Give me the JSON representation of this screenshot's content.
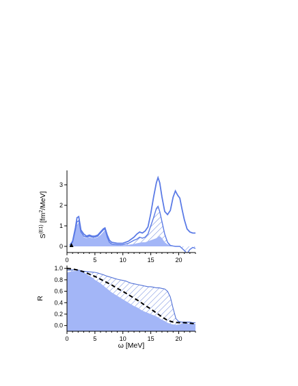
{
  "colors": {
    "line": "#5a7ae6",
    "fill": "#a3b6f7",
    "hatch": "#4f6fd6",
    "dash": "#000000"
  },
  "chart_data": [
    {
      "type": "area",
      "ylabel": "S(E1) [fm2/MeV]",
      "ylabel_main": "S",
      "ylabel_sup": "(E1)",
      "ylabel_unit_a": " [fm",
      "ylabel_unit_sup": "2",
      "ylabel_unit_b": "/MeV]",
      "xlim": [
        0,
        23
      ],
      "ylim": [
        -0.3,
        3.7
      ],
      "xticks": [
        "0",
        "5",
        "10",
        "15",
        "20"
      ],
      "xtick_values": [
        0,
        5,
        10,
        15,
        20
      ],
      "yticks": [
        "0",
        "1",
        "2",
        "3"
      ],
      "ytick_values": [
        0,
        1,
        2,
        3
      ],
      "marker": {
        "shape": "triangle",
        "x": 0.8,
        "y": 0.0
      },
      "series": [
        {
          "role": "total-outline",
          "x": [
            0.5,
            1.0,
            1.5,
            1.8,
            2.1,
            2.5,
            3.0,
            3.5,
            4.0,
            4.5,
            5.0,
            5.5,
            6.0,
            6.5,
            6.8,
            7.2,
            7.6,
            8.0,
            9.0,
            10.0,
            11.0,
            12.0,
            12.5,
            13.0,
            13.5,
            14.0,
            14.5,
            15.0,
            15.5,
            16.0,
            16.3,
            16.6,
            17.0,
            17.5,
            18.0,
            18.5,
            19.0,
            19.4,
            19.8,
            20.2,
            20.6,
            21.0,
            21.5,
            22.0,
            22.5,
            23.0
          ],
          "values": [
            0.05,
            0.25,
            0.9,
            1.4,
            1.45,
            0.8,
            0.6,
            0.5,
            0.55,
            0.5,
            0.5,
            0.55,
            0.7,
            0.85,
            0.9,
            0.55,
            0.3,
            0.2,
            0.15,
            0.15,
            0.25,
            0.45,
            0.6,
            0.7,
            0.65,
            0.75,
            0.95,
            1.6,
            2.4,
            3.1,
            3.35,
            3.1,
            2.4,
            1.7,
            1.55,
            1.75,
            2.4,
            2.7,
            2.5,
            2.35,
            1.8,
            1.3,
            0.85,
            0.7,
            0.65,
            0.65
          ]
        },
        {
          "role": "middle-outline",
          "x": [
            0.5,
            1.0,
            1.5,
            1.8,
            2.1,
            2.5,
            3.0,
            3.5,
            4.0,
            4.5,
            5.0,
            5.5,
            6.0,
            6.5,
            6.8,
            7.2,
            7.6,
            8.0,
            9.0,
            10.0,
            11.0,
            12.0,
            12.5,
            13.0,
            13.5,
            14.0,
            14.5,
            15.0,
            15.5,
            16.0,
            16.3,
            16.6,
            17.0,
            17.5,
            18.0,
            18.5,
            19.0,
            19.4,
            19.8,
            20.2,
            20.6,
            21.0,
            21.5,
            22.0,
            22.5,
            23.0
          ],
          "values": [
            0.05,
            0.2,
            0.8,
            1.2,
            1.25,
            0.7,
            0.5,
            0.45,
            0.5,
            0.45,
            0.45,
            0.5,
            0.65,
            0.8,
            0.85,
            0.45,
            0.2,
            0.12,
            0.08,
            0.08,
            0.15,
            0.3,
            0.35,
            0.45,
            0.4,
            0.45,
            0.6,
            1.0,
            1.4,
            1.85,
            1.95,
            1.7,
            1.2,
            0.6,
            0.2,
            0.05,
            0.02,
            0.0,
            0.0,
            0.0,
            -0.1,
            -0.2,
            -0.35,
            -0.15,
            -0.05,
            -0.1
          ]
        },
        {
          "role": "filled-area",
          "x": [
            0.5,
            1.0,
            1.5,
            1.8,
            2.1,
            2.5,
            3.0,
            3.5,
            4.0,
            4.5,
            5.0,
            5.5,
            6.0,
            6.5,
            6.8,
            7.2,
            7.6,
            8.0,
            9.0,
            10.0,
            11.0,
            12.0,
            12.5,
            13.0,
            13.5,
            14.0,
            14.5,
            15.0,
            15.5,
            16.0,
            16.3,
            16.6,
            17.0,
            17.5,
            18.0,
            18.5,
            19.0,
            19.4,
            19.8,
            20.2,
            20.6,
            21.0,
            21.5,
            22.0,
            22.5,
            23.0
          ],
          "values": [
            0.05,
            0.2,
            0.75,
            1.05,
            1.1,
            0.65,
            0.45,
            0.4,
            0.45,
            0.4,
            0.4,
            0.45,
            0.55,
            0.7,
            0.8,
            0.4,
            0.18,
            0.1,
            0.06,
            0.05,
            0.08,
            0.12,
            0.15,
            0.18,
            0.2,
            0.2,
            0.25,
            0.3,
            0.35,
            0.4,
            0.45,
            0.5,
            0.4,
            0.2,
            0.1,
            0.05,
            0.02,
            0.0,
            0.0,
            0.0,
            0.0,
            0.0,
            0.0,
            0.0,
            0.0,
            0.0
          ]
        }
      ]
    },
    {
      "type": "area",
      "ylabel": "R",
      "xlabel": "ω [MeV]",
      "xlim": [
        0,
        23
      ],
      "ylim": [
        -0.1,
        1.05
      ],
      "xticks": [
        "0",
        "5",
        "10",
        "15",
        "20"
      ],
      "xtick_values": [
        0,
        5,
        10,
        15,
        20
      ],
      "yticks": [
        "0.0",
        "0.2",
        "0.4",
        "0.6",
        "0.8",
        "1.0"
      ],
      "ytick_values": [
        0.0,
        0.2,
        0.4,
        0.6,
        0.8,
        1.0
      ],
      "series": [
        {
          "role": "upper-outline",
          "x": [
            0,
            0.5,
            1.0,
            1.5,
            2.0,
            2.5,
            3.0,
            3.5,
            4.0,
            4.5,
            5.0,
            5.5,
            6.0,
            6.5,
            7.0,
            7.5,
            8.0,
            8.5,
            9.0,
            9.5,
            10.0,
            10.5,
            11.0,
            11.5,
            12.0,
            12.5,
            13.0,
            13.5,
            14.0,
            14.5,
            15.0,
            15.5,
            16.0,
            16.5,
            17.0,
            17.5,
            18.0,
            18.5,
            19.0,
            19.5,
            20.0,
            20.5,
            21.0,
            21.5,
            22.0,
            22.5,
            23.0
          ],
          "values": [
            0.97,
            0.97,
            0.975,
            0.975,
            0.97,
            0.96,
            0.95,
            0.945,
            0.94,
            0.935,
            0.93,
            0.92,
            0.905,
            0.89,
            0.87,
            0.855,
            0.84,
            0.825,
            0.81,
            0.8,
            0.79,
            0.78,
            0.76,
            0.74,
            0.73,
            0.72,
            0.71,
            0.7,
            0.69,
            0.68,
            0.68,
            0.67,
            0.66,
            0.66,
            0.65,
            0.64,
            0.6,
            0.5,
            0.3,
            0.12,
            0.07,
            0.06,
            0.06,
            0.06,
            0.06,
            0.05,
            0.05
          ]
        },
        {
          "role": "dashed-curve",
          "x": [
            0,
            1,
            2,
            3,
            4,
            5,
            6,
            7,
            8,
            9,
            10,
            11,
            12,
            13,
            14,
            15,
            16,
            17,
            18,
            19,
            20,
            21,
            22,
            23
          ],
          "values": [
            1.0,
            0.99,
            0.97,
            0.94,
            0.9,
            0.86,
            0.81,
            0.76,
            0.71,
            0.65,
            0.6,
            0.54,
            0.48,
            0.42,
            0.35,
            0.29,
            0.22,
            0.15,
            0.09,
            0.06,
            0.05,
            0.05,
            0.04,
            0.03
          ]
        },
        {
          "role": "filled-area",
          "x": [
            0,
            0.5,
            1.0,
            1.5,
            2.0,
            2.5,
            3.0,
            3.5,
            4.0,
            4.5,
            5.0,
            5.5,
            6.0,
            6.5,
            7.0,
            7.5,
            8.0,
            8.5,
            9.0,
            9.5,
            10.0,
            10.5,
            11.0,
            11.5,
            12.0,
            12.5,
            13.0,
            13.5,
            14.0,
            14.5,
            15.0,
            15.5,
            16.0,
            16.5,
            17.0,
            17.5,
            18.0,
            18.5,
            19.0,
            19.5,
            20.0,
            20.5,
            21.0,
            21.5,
            22.0,
            22.5,
            23.0
          ],
          "values": [
            0.93,
            0.94,
            0.95,
            0.96,
            0.96,
            0.95,
            0.93,
            0.9,
            0.87,
            0.84,
            0.8,
            0.77,
            0.74,
            0.7,
            0.66,
            0.62,
            0.58,
            0.55,
            0.52,
            0.49,
            0.46,
            0.43,
            0.4,
            0.37,
            0.34,
            0.32,
            0.29,
            0.26,
            0.24,
            0.22,
            0.2,
            0.18,
            0.16,
            0.13,
            0.1,
            0.08,
            0.05,
            0.03,
            0.02,
            0.01,
            0.02,
            0.03,
            0.04,
            0.03,
            0.03,
            0.03,
            0.03
          ]
        }
      ]
    }
  ]
}
